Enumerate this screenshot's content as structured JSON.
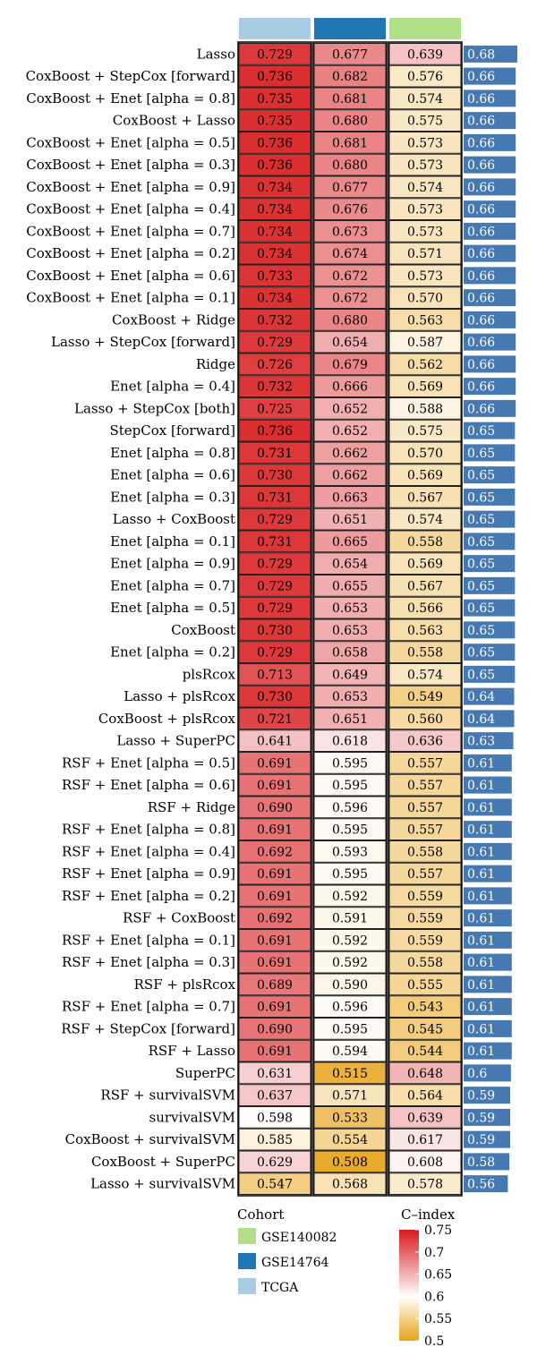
{
  "chart_data": {
    "type": "heatmap",
    "columns": [
      "TCGA",
      "GSE14764",
      "GSE140082"
    ],
    "column_colors": {
      "TCGA": "#a6cde3",
      "GSE14764": "#1f78b4",
      "GSE140082": "#b2df8a"
    },
    "bar_color": "#4679b2",
    "rows": [
      {
        "model": "Lasso",
        "values": [
          0.729,
          0.677,
          0.639
        ],
        "mean": "0.68"
      },
      {
        "model": "CoxBoost + StepCox [forward]",
        "values": [
          0.736,
          0.682,
          0.576
        ],
        "mean": "0.66"
      },
      {
        "model": "CoxBoost + Enet [alpha = 0.8]",
        "values": [
          0.735,
          0.681,
          0.574
        ],
        "mean": "0.66"
      },
      {
        "model": "CoxBoost + Lasso",
        "values": [
          0.735,
          0.68,
          0.575
        ],
        "mean": "0.66"
      },
      {
        "model": "CoxBoost + Enet [alpha = 0.5]",
        "values": [
          0.736,
          0.681,
          0.573
        ],
        "mean": "0.66"
      },
      {
        "model": "CoxBoost + Enet [alpha = 0.3]",
        "values": [
          0.736,
          0.68,
          0.573
        ],
        "mean": "0.66"
      },
      {
        "model": "CoxBoost + Enet [alpha = 0.9]",
        "values": [
          0.734,
          0.677,
          0.574
        ],
        "mean": "0.66"
      },
      {
        "model": "CoxBoost + Enet [alpha = 0.4]",
        "values": [
          0.734,
          0.676,
          0.573
        ],
        "mean": "0.66"
      },
      {
        "model": "CoxBoost + Enet [alpha = 0.7]",
        "values": [
          0.734,
          0.673,
          0.573
        ],
        "mean": "0.66"
      },
      {
        "model": "CoxBoost + Enet [alpha = 0.2]",
        "values": [
          0.734,
          0.674,
          0.571
        ],
        "mean": "0.66"
      },
      {
        "model": "CoxBoost + Enet [alpha = 0.6]",
        "values": [
          0.733,
          0.672,
          0.573
        ],
        "mean": "0.66"
      },
      {
        "model": "CoxBoost + Enet [alpha = 0.1]",
        "values": [
          0.734,
          0.672,
          0.57
        ],
        "mean": "0.66"
      },
      {
        "model": "CoxBoost + Ridge",
        "values": [
          0.732,
          0.68,
          0.563
        ],
        "mean": "0.66"
      },
      {
        "model": "Lasso + StepCox [forward]",
        "values": [
          0.729,
          0.654,
          0.587
        ],
        "mean": "0.66"
      },
      {
        "model": "Ridge",
        "values": [
          0.726,
          0.679,
          0.562
        ],
        "mean": "0.66"
      },
      {
        "model": "Enet [alpha = 0.4]",
        "values": [
          0.732,
          0.666,
          0.569
        ],
        "mean": "0.66"
      },
      {
        "model": "Lasso + StepCox [both]",
        "values": [
          0.725,
          0.652,
          0.588
        ],
        "mean": "0.66"
      },
      {
        "model": "StepCox [forward]",
        "values": [
          0.736,
          0.652,
          0.575
        ],
        "mean": "0.65"
      },
      {
        "model": "Enet [alpha = 0.8]",
        "values": [
          0.731,
          0.662,
          0.57
        ],
        "mean": "0.65"
      },
      {
        "model": "Enet [alpha = 0.6]",
        "values": [
          0.73,
          0.662,
          0.569
        ],
        "mean": "0.65"
      },
      {
        "model": "Enet [alpha = 0.3]",
        "values": [
          0.731,
          0.663,
          0.567
        ],
        "mean": "0.65"
      },
      {
        "model": "Lasso + CoxBoost",
        "values": [
          0.729,
          0.651,
          0.574
        ],
        "mean": "0.65"
      },
      {
        "model": "Enet [alpha = 0.1]",
        "values": [
          0.731,
          0.665,
          0.558
        ],
        "mean": "0.65"
      },
      {
        "model": "Enet [alpha = 0.9]",
        "values": [
          0.729,
          0.654,
          0.569
        ],
        "mean": "0.65"
      },
      {
        "model": "Enet [alpha = 0.7]",
        "values": [
          0.729,
          0.655,
          0.567
        ],
        "mean": "0.65"
      },
      {
        "model": "Enet [alpha = 0.5]",
        "values": [
          0.729,
          0.653,
          0.566
        ],
        "mean": "0.65"
      },
      {
        "model": "CoxBoost",
        "values": [
          0.73,
          0.653,
          0.563
        ],
        "mean": "0.65"
      },
      {
        "model": "Enet [alpha = 0.2]",
        "values": [
          0.729,
          0.658,
          0.558
        ],
        "mean": "0.65"
      },
      {
        "model": "plsRcox",
        "values": [
          0.713,
          0.649,
          0.574
        ],
        "mean": "0.65"
      },
      {
        "model": "Lasso + plsRcox",
        "values": [
          0.73,
          0.653,
          0.549
        ],
        "mean": "0.64"
      },
      {
        "model": "CoxBoost + plsRcox",
        "values": [
          0.721,
          0.651,
          0.56
        ],
        "mean": "0.64"
      },
      {
        "model": "Lasso + SuperPC",
        "values": [
          0.641,
          0.618,
          0.636
        ],
        "mean": "0.63"
      },
      {
        "model": "RSF + Enet [alpha = 0.5]",
        "values": [
          0.691,
          0.595,
          0.557
        ],
        "mean": "0.61"
      },
      {
        "model": "RSF + Enet [alpha = 0.6]",
        "values": [
          0.691,
          0.595,
          0.557
        ],
        "mean": "0.61"
      },
      {
        "model": "RSF + Ridge",
        "values": [
          0.69,
          0.596,
          0.557
        ],
        "mean": "0.61"
      },
      {
        "model": "RSF + Enet [alpha = 0.8]",
        "values": [
          0.691,
          0.595,
          0.557
        ],
        "mean": "0.61"
      },
      {
        "model": "RSF + Enet [alpha = 0.4]",
        "values": [
          0.692,
          0.593,
          0.558
        ],
        "mean": "0.61"
      },
      {
        "model": "RSF + Enet [alpha = 0.9]",
        "values": [
          0.691,
          0.595,
          0.557
        ],
        "mean": "0.61"
      },
      {
        "model": "RSF + Enet [alpha = 0.2]",
        "values": [
          0.691,
          0.592,
          0.559
        ],
        "mean": "0.61"
      },
      {
        "model": "RSF + CoxBoost",
        "values": [
          0.692,
          0.591,
          0.559
        ],
        "mean": "0.61"
      },
      {
        "model": "RSF + Enet [alpha = 0.1]",
        "values": [
          0.691,
          0.592,
          0.559
        ],
        "mean": "0.61"
      },
      {
        "model": "RSF + Enet [alpha = 0.3]",
        "values": [
          0.691,
          0.592,
          0.558
        ],
        "mean": "0.61"
      },
      {
        "model": "RSF + plsRcox",
        "values": [
          0.689,
          0.59,
          0.555
        ],
        "mean": "0.61"
      },
      {
        "model": "RSF + Enet [alpha = 0.7]",
        "values": [
          0.691,
          0.596,
          0.543
        ],
        "mean": "0.61"
      },
      {
        "model": "RSF + StepCox [forward]",
        "values": [
          0.69,
          0.595,
          0.545
        ],
        "mean": "0.61"
      },
      {
        "model": "RSF + Lasso",
        "values": [
          0.691,
          0.594,
          0.544
        ],
        "mean": "0.61"
      },
      {
        "model": "SuperPC",
        "values": [
          0.631,
          0.515,
          0.648
        ],
        "mean": "0.6"
      },
      {
        "model": "RSF + survivalSVM",
        "values": [
          0.637,
          0.571,
          0.564
        ],
        "mean": "0.59"
      },
      {
        "model": "survivalSVM",
        "values": [
          0.598,
          0.533,
          0.639
        ],
        "mean": "0.59"
      },
      {
        "model": "CoxBoost + survivalSVM",
        "values": [
          0.585,
          0.554,
          0.617
        ],
        "mean": "0.59"
      },
      {
        "model": "CoxBoost + SuperPC",
        "values": [
          0.629,
          0.508,
          0.608
        ],
        "mean": "0.58"
      },
      {
        "model": "Lasso + survivalSVM",
        "values": [
          0.547,
          0.568,
          0.578
        ],
        "mean": "0.56"
      }
    ],
    "legend": {
      "cohort_title": "Cohort",
      "cohort_items": [
        {
          "label": "GSE140082",
          "color": "#b2df8a"
        },
        {
          "label": "GSE14764",
          "color": "#1f78b4"
        },
        {
          "label": "TCGA",
          "color": "#a6cde3"
        }
      ],
      "scale_title": "C–index",
      "scale_ticks": [
        "0.75",
        "0.7",
        "0.65",
        "0.6",
        "0.55",
        "0.5"
      ],
      "scale_tick_values": [
        0.75,
        0.7,
        0.65,
        0.6,
        0.55,
        0.5
      ],
      "scale_range": [
        0.5,
        0.75
      ],
      "scale_colors": {
        "low": "#e8a317",
        "mid": "#ffffff",
        "high": "#d7191c",
        "mid_value": 0.6
      }
    }
  }
}
